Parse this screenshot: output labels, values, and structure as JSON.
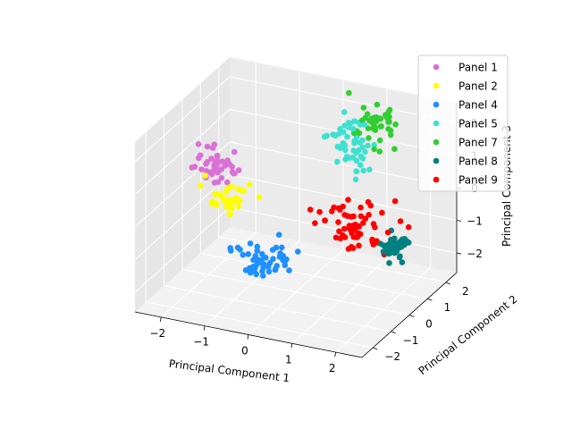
{
  "chart_data": {
    "type": "scatter",
    "projection": "3d",
    "title": "",
    "xlabel": "Principal Component 1",
    "ylabel": "Principal Component 2",
    "zlabel": "Principal Component 3",
    "xlim": [
      -2.6,
      2.6
    ],
    "ylim": [
      -2.6,
      2.6
    ],
    "zlim": [
      -2.6,
      2.6
    ],
    "xticks": [
      "−2",
      "−1",
      "0",
      "1",
      "2"
    ],
    "yticks": [
      "−2",
      "−1",
      "0",
      "1",
      "2"
    ],
    "zticks": [
      "−2",
      "−1",
      "0",
      "1",
      "2"
    ],
    "grid": true,
    "legend_position": "top-right",
    "series": [
      {
        "name": "Panel 1",
        "color": "#da70d6",
        "center": [
          -2.0,
          0.4,
          0.55
        ],
        "spread": [
          0.25,
          0.25,
          0.25
        ],
        "count": 45
      },
      {
        "name": "Panel 2",
        "color": "#ffff00",
        "center": [
          -1.6,
          0.1,
          -0.2
        ],
        "spread": [
          0.25,
          0.3,
          0.25
        ],
        "count": 40
      },
      {
        "name": "Panel 4",
        "color": "#1e90ff",
        "center": [
          -0.3,
          -0.7,
          -1.4
        ],
        "spread": [
          0.3,
          0.35,
          0.25
        ],
        "count": 55
      },
      {
        "name": "Panel 5",
        "color": "#40e0d0",
        "center": [
          0.45,
          1.95,
          1.1
        ],
        "spread": [
          0.25,
          0.3,
          0.35
        ],
        "count": 50
      },
      {
        "name": "Panel 7",
        "color": "#32cd32",
        "center": [
          0.85,
          2.4,
          1.65
        ],
        "spread": [
          0.25,
          0.25,
          0.3
        ],
        "count": 45
      },
      {
        "name": "Panel 8",
        "color": "#008080",
        "center": [
          1.9,
          1.0,
          -1.2
        ],
        "spread": [
          0.15,
          0.2,
          0.2
        ],
        "count": 45
      },
      {
        "name": "Panel 9",
        "color": "#ff0000",
        "center": [
          1.1,
          0.7,
          -0.6
        ],
        "spread": [
          0.45,
          0.35,
          0.4
        ],
        "count": 60
      }
    ]
  }
}
